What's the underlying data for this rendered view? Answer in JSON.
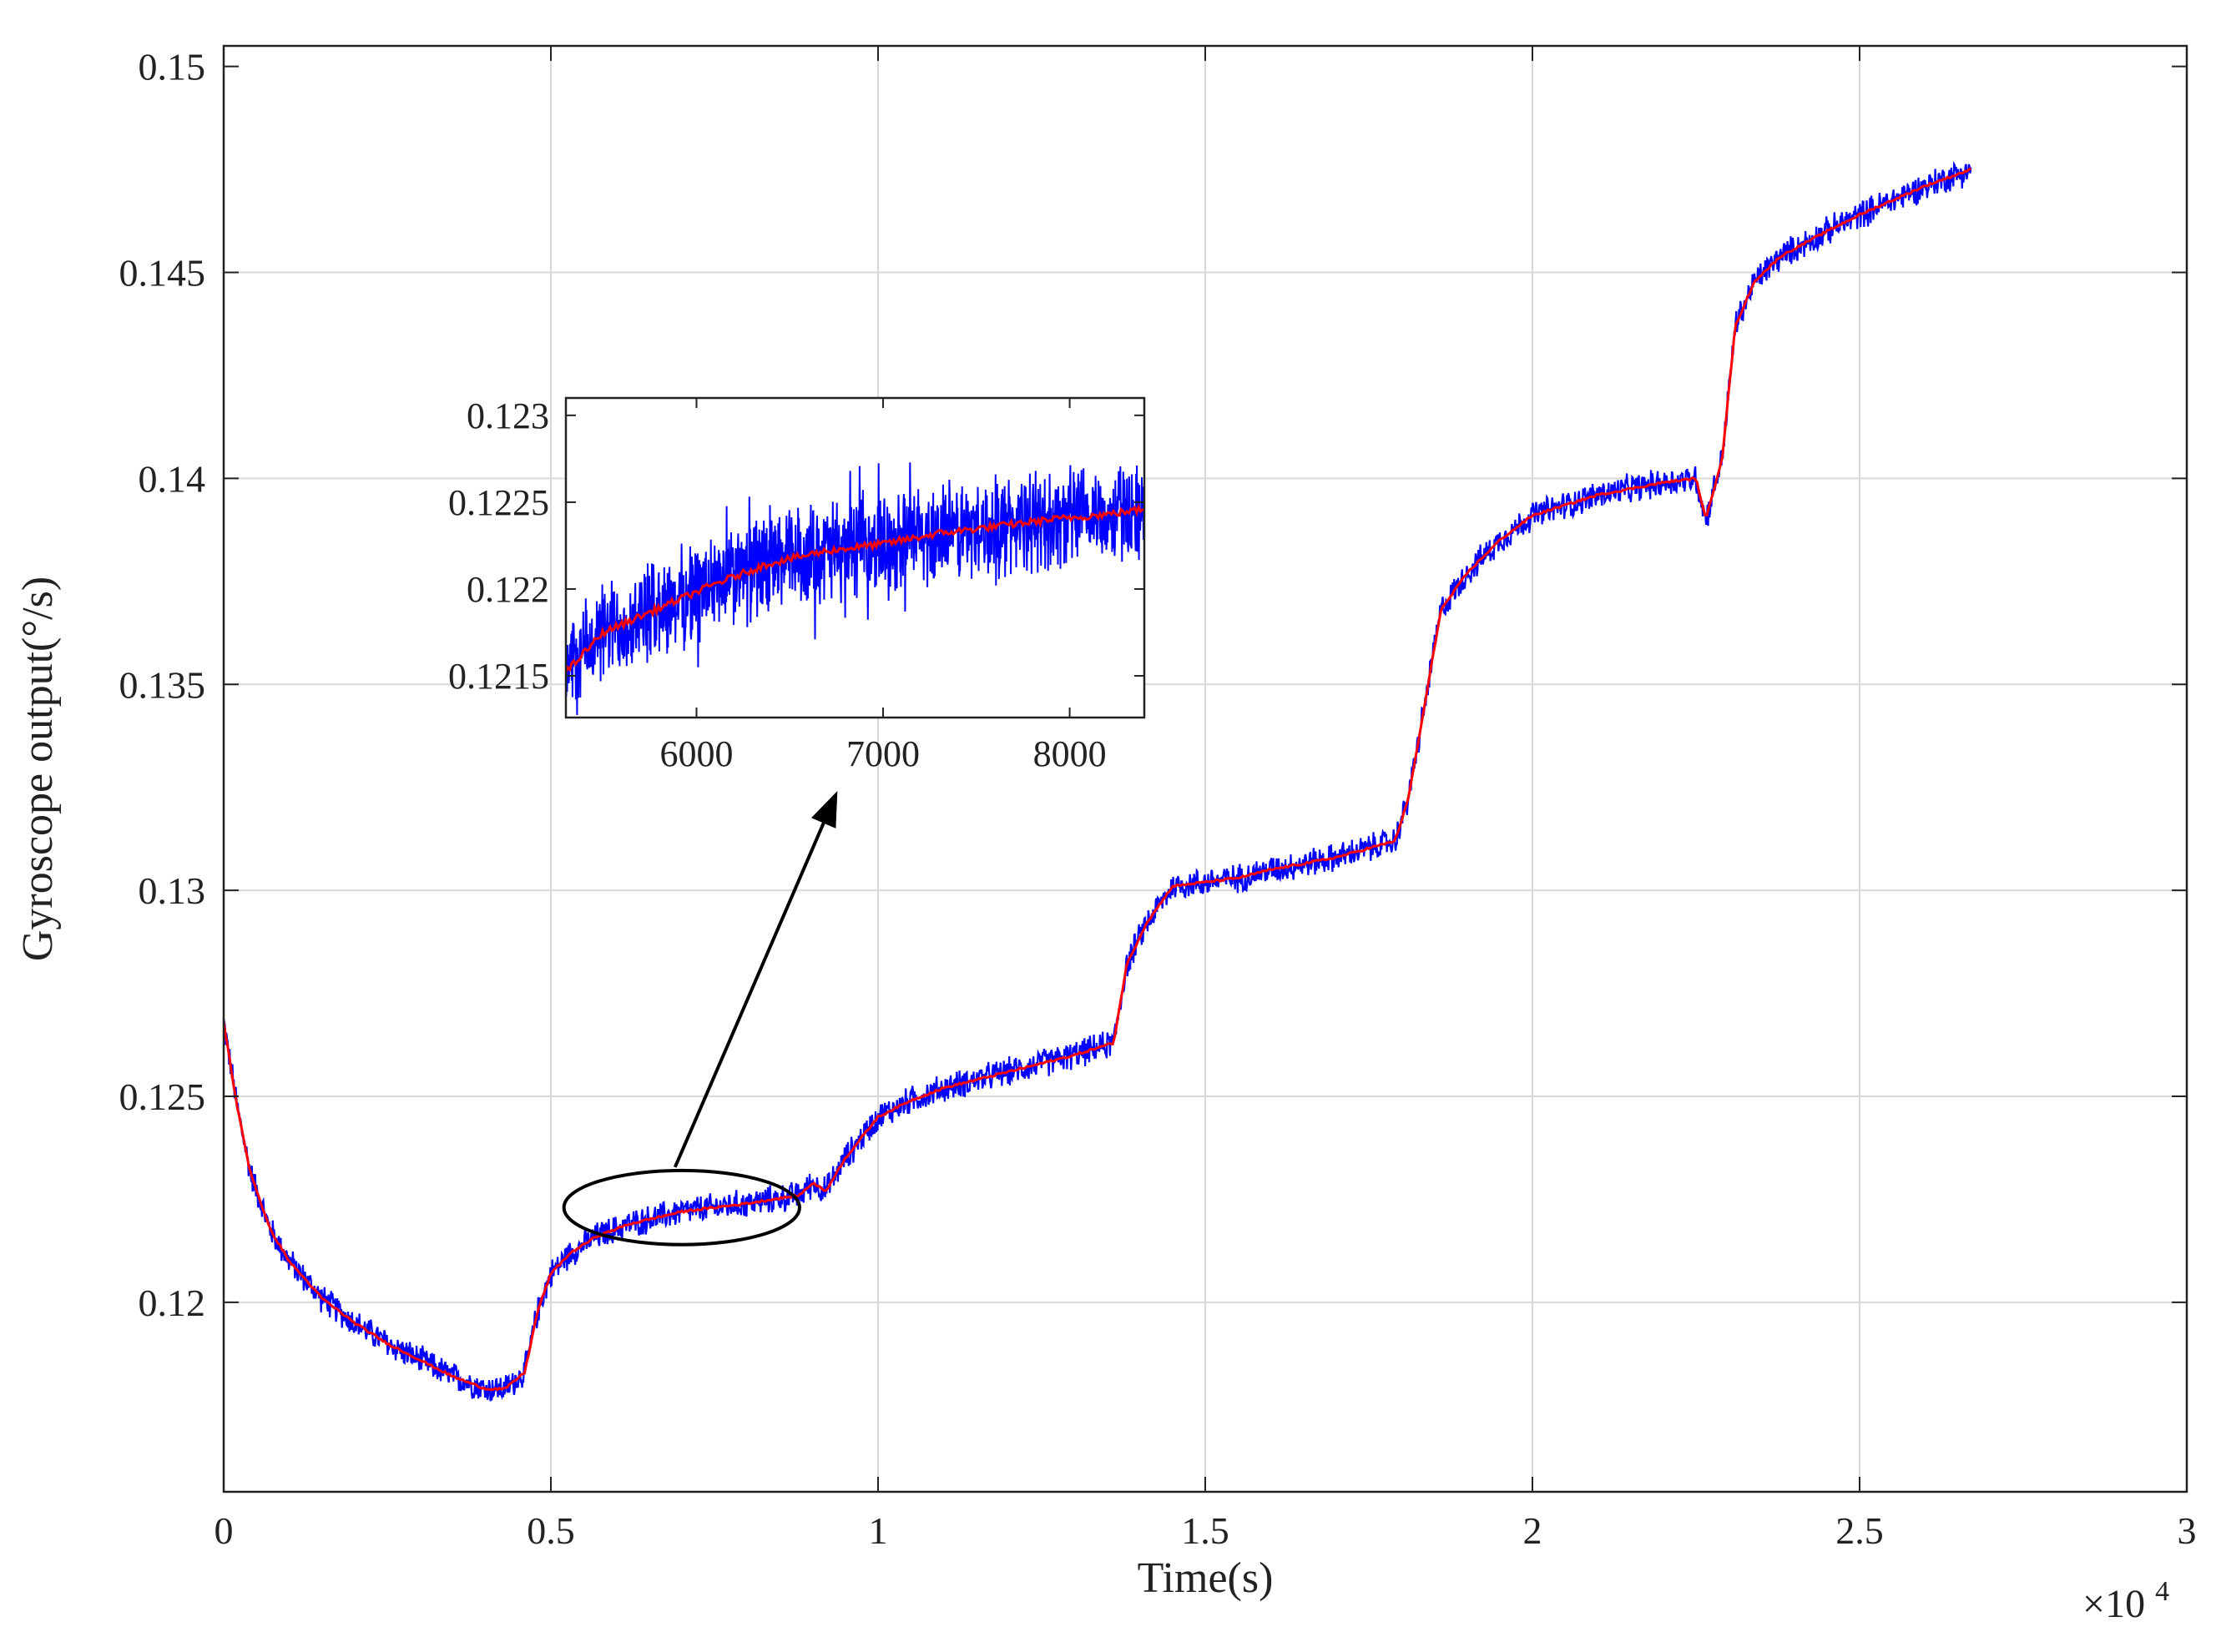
{
  "chart_data": {
    "type": "line",
    "xlabel": "Time(s)",
    "ylabel": "Gyroscope output(°/s)",
    "x_multiplier_label": "×10",
    "x_multiplier_exponent": "4",
    "xlim": [
      0,
      30000
    ],
    "ylim": [
      0.1154,
      0.1505
    ],
    "xticks": [
      0,
      5000,
      10000,
      15000,
      20000,
      25000,
      30000
    ],
    "xtick_labels": [
      "0",
      "0.5",
      "1",
      "1.5",
      "2",
      "2.5",
      "3"
    ],
    "yticks": [
      0.12,
      0.125,
      0.13,
      0.135,
      0.14,
      0.145,
      0.15
    ],
    "ytick_labels": [
      "0.12",
      "0.125",
      "0.13",
      "0.135",
      "0.14",
      "0.145",
      "0.15"
    ],
    "grid": true,
    "colors": {
      "raw": "#0000ff",
      "filtered": "#ff0000",
      "grid": "#d9d9d9",
      "axis": "#222222"
    },
    "series": [
      {
        "role": "raw",
        "noise_amplitude": 0.0004,
        "x": [
          0,
          200,
          400,
          700,
          1000,
          1500,
          2000,
          2500,
          3000,
          3500,
          4000,
          4300,
          4600,
          4800,
          5000,
          5300,
          5700,
          6200,
          7000,
          8000,
          8800,
          9000,
          9200,
          9500,
          10000,
          10500,
          11000,
          12000,
          13000,
          13600,
          13800,
          14100,
          14500,
          15000,
          15500,
          16000,
          17000,
          17900,
          18100,
          18300,
          18600,
          19000,
          19500,
          20000,
          21000,
          22000,
          22500,
          22650,
          22900,
          23100,
          23400,
          23800,
          24500,
          25000,
          26000,
          26700
        ],
        "y": [
          0.1268,
          0.1248,
          0.1232,
          0.1218,
          0.121,
          0.1201,
          0.1195,
          0.119,
          0.1186,
          0.1182,
          0.1179,
          0.1179,
          0.1183,
          0.1198,
          0.1207,
          0.1212,
          0.1216,
          0.1219,
          0.1222,
          0.1224,
          0.1226,
          0.1229,
          0.1227,
          0.1235,
          0.1245,
          0.1249,
          0.1252,
          0.1256,
          0.126,
          0.1263,
          0.1282,
          0.1292,
          0.1301,
          0.1302,
          0.1303,
          0.1305,
          0.1308,
          0.1312,
          0.1322,
          0.134,
          0.1368,
          0.1377,
          0.1385,
          0.1391,
          0.1396,
          0.1399,
          0.14,
          0.139,
          0.1405,
          0.1437,
          0.1448,
          0.1454,
          0.146,
          0.1464,
          0.1471,
          0.1475
        ]
      },
      {
        "role": "filtered",
        "x": [
          0,
          200,
          400,
          700,
          1000,
          1500,
          2000,
          2500,
          3000,
          3500,
          4000,
          4300,
          4600,
          4800,
          5000,
          5300,
          5700,
          6200,
          7000,
          8000,
          8800,
          9000,
          9200,
          9500,
          10000,
          10500,
          11000,
          12000,
          13000,
          13600,
          13800,
          14100,
          14500,
          15000,
          15500,
          16000,
          17000,
          17900,
          18100,
          18300,
          18600,
          19000,
          19500,
          20000,
          21000,
          22000,
          22500,
          22650,
          22900,
          23100,
          23400,
          23800,
          24500,
          25000,
          26000,
          26700
        ],
        "y": [
          0.1268,
          0.1248,
          0.1232,
          0.1218,
          0.121,
          0.1201,
          0.1195,
          0.119,
          0.1186,
          0.1182,
          0.1179,
          0.1179,
          0.1183,
          0.1198,
          0.1207,
          0.1212,
          0.1216,
          0.1219,
          0.1222,
          0.1224,
          0.1226,
          0.1229,
          0.1227,
          0.1235,
          0.1245,
          0.1249,
          0.1252,
          0.1256,
          0.126,
          0.1263,
          0.1282,
          0.1292,
          0.1301,
          0.1302,
          0.1303,
          0.1305,
          0.1308,
          0.1312,
          0.1322,
          0.134,
          0.1368,
          0.1377,
          0.1385,
          0.1391,
          0.1396,
          0.1399,
          0.14,
          0.139,
          0.1405,
          0.1437,
          0.1448,
          0.1454,
          0.146,
          0.1464,
          0.1471,
          0.1475
        ]
      }
    ],
    "highlight_ellipse": {
      "center": [
        7000,
        0.1223
      ],
      "rx": 3600,
      "ry": 0.0009
    },
    "inset": {
      "xlim": [
        5300,
        8400
      ],
      "ylim": [
        0.12126,
        0.1231
      ],
      "xticks": [
        6000,
        7000,
        8000
      ],
      "xtick_labels": [
        "6000",
        "7000",
        "8000"
      ],
      "yticks": [
        0.1215,
        0.122,
        0.1225,
        0.123
      ],
      "ytick_labels": [
        "0.1215",
        "0.122",
        "0.1225",
        "0.123"
      ],
      "noise_amplitude": 0.00034,
      "x": [
        5300,
        5500,
        5800,
        6100,
        6400,
        6700,
        7000,
        7300,
        7600,
        7900,
        8200,
        8400
      ],
      "y": [
        0.12152,
        0.12175,
        0.12189,
        0.12203,
        0.12215,
        0.12222,
        0.12226,
        0.12232,
        0.12236,
        0.1224,
        0.12243,
        0.12246
      ]
    }
  }
}
